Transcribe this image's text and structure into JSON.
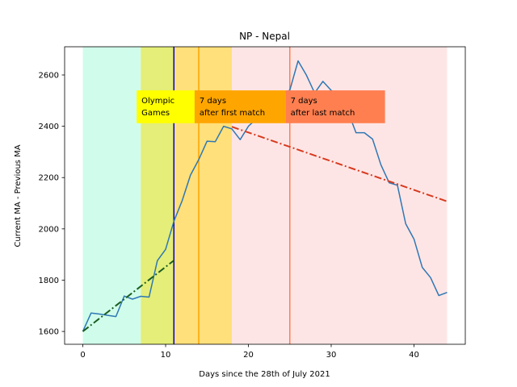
{
  "chart_data": {
    "type": "line",
    "title": "NP - Nepal",
    "xlabel": "Days since the 28th of July 2021",
    "ylabel": "Current MA - Previous MA",
    "xlim": [
      -2.2,
      46.2
    ],
    "ylim": [
      1550,
      2710
    ],
    "xticks": [
      0,
      10,
      20,
      30,
      40
    ],
    "yticks": [
      1600,
      1800,
      2000,
      2200,
      2400,
      2600
    ],
    "grid": false,
    "regions": [
      {
        "from": 0,
        "to": 7,
        "color": "#d0fdeb"
      },
      {
        "from": 7,
        "to": 11,
        "color": "#e4ee78"
      },
      {
        "from": 11,
        "to": 18,
        "color": "#ffe07a"
      },
      {
        "from": 18,
        "to": 44,
        "color": "#fee5e5"
      }
    ],
    "vlines": [
      {
        "x": 11,
        "color": "#0000cc"
      },
      {
        "x": 14,
        "color": "#ffa500"
      },
      {
        "x": 25,
        "color": "#ff7f50"
      }
    ],
    "series": [
      {
        "color": "#2e77b4",
        "style": "solid",
        "x": [
          0,
          1,
          2,
          3,
          4,
          5,
          6,
          7,
          8,
          9,
          10,
          11,
          12,
          13,
          14,
          15,
          16,
          17,
          18,
          19,
          20,
          21,
          22,
          23,
          24,
          25,
          26,
          27,
          28,
          29,
          30,
          31,
          32,
          33,
          34,
          35,
          36,
          37,
          38,
          39,
          40,
          41,
          42,
          43,
          44
        ],
        "y": [
          1600,
          1672,
          1668,
          1663,
          1658,
          1738,
          1726,
          1737,
          1734,
          1876,
          1920,
          2030,
          2110,
          2210,
          2270,
          2342,
          2340,
          2400,
          2390,
          2348,
          2400,
          2430,
          2470,
          2470,
          2530,
          2540,
          2655,
          2600,
          2530,
          2575,
          2540,
          2520,
          2460,
          2375,
          2375,
          2350,
          2250,
          2180,
          2170,
          2020,
          1960,
          1850,
          1810,
          1740,
          1752
        ]
      },
      {
        "color": "#1b5e20",
        "style": "dashdot",
        "x": [
          0,
          11
        ],
        "y": [
          1600,
          1877
        ]
      },
      {
        "color": "#d73a1e",
        "style": "dashdot",
        "x": [
          18,
          44
        ],
        "y": [
          2398,
          2107
        ]
      }
    ],
    "annotations": [
      {
        "lines": [
          "Olympic",
          "Games"
        ],
        "box_color": "#ffff00",
        "x": 6.5,
        "x_end": 13.5,
        "y_top": 2540,
        "y_bottom": 2412
      },
      {
        "lines": [
          "7 days",
          "after first match"
        ],
        "box_color": "#ffa500",
        "x": 13.5,
        "x_end": 24.5,
        "y_top": 2540,
        "y_bottom": 2412
      },
      {
        "lines": [
          "7 days",
          "after last match"
        ],
        "box_color": "#ff7f50",
        "x": 24.5,
        "x_end": 36.5,
        "y_top": 2540,
        "y_bottom": 2412
      }
    ]
  }
}
